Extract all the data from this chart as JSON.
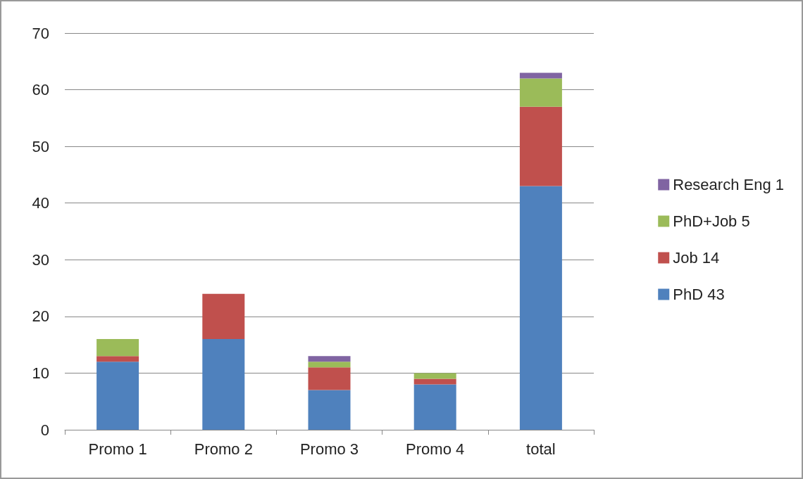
{
  "chart_data": {
    "type": "bar",
    "stacked": true,
    "categories": [
      "Promo 1",
      "Promo 2",
      "Promo 3",
      "Promo 4",
      "total"
    ],
    "series": [
      {
        "name": "PhD 43",
        "color": "#4f81bd",
        "values": [
          12,
          16,
          7,
          8,
          43
        ]
      },
      {
        "name": "Job 14",
        "color": "#c0504d",
        "values": [
          1,
          8,
          4,
          1,
          14
        ]
      },
      {
        "name": "PhD+Job 5",
        "color": "#9bbb59",
        "values": [
          3,
          0,
          1,
          1,
          5
        ]
      },
      {
        "name": "Research Eng 1",
        "color": "#8064a2",
        "values": [
          0,
          0,
          1,
          0,
          1
        ]
      }
    ],
    "ylim": [
      0,
      70
    ],
    "yticks": [
      0,
      10,
      20,
      30,
      40,
      50,
      60,
      70
    ],
    "grid": "y",
    "legend": "right"
  }
}
